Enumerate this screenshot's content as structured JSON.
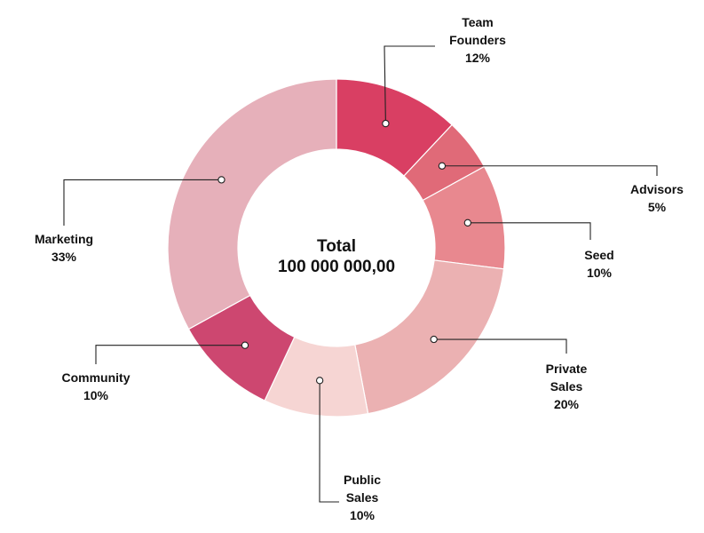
{
  "center": {
    "title": "Total",
    "value": "100 000 000,00"
  },
  "chart_data": {
    "type": "pie",
    "variant": "donut",
    "title": "",
    "total_label": "Total",
    "total_value": "100 000 000,00",
    "slices": [
      {
        "lines": [
          "Team",
          "Founders"
        ],
        "pct_label": "12%",
        "value": 12,
        "color": "#d93f63"
      },
      {
        "lines": [
          "Advisors"
        ],
        "pct_label": "5%",
        "value": 5,
        "color": "#e06a78"
      },
      {
        "lines": [
          "Seed"
        ],
        "pct_label": "10%",
        "value": 10,
        "color": "#e8888f"
      },
      {
        "lines": [
          "Private",
          "Sales"
        ],
        "pct_label": "20%",
        "value": 20,
        "color": "#ebb1b2"
      },
      {
        "lines": [
          "Public",
          "Sales"
        ],
        "pct_label": "10%",
        "value": 10,
        "color": "#f6d5d3"
      },
      {
        "lines": [
          "Community"
        ],
        "pct_label": "10%",
        "value": 10,
        "color": "#cd4770"
      },
      {
        "lines": [
          "Marketing"
        ],
        "pct_label": "33%",
        "value": 33,
        "color": "#e6b0ba"
      }
    ]
  }
}
